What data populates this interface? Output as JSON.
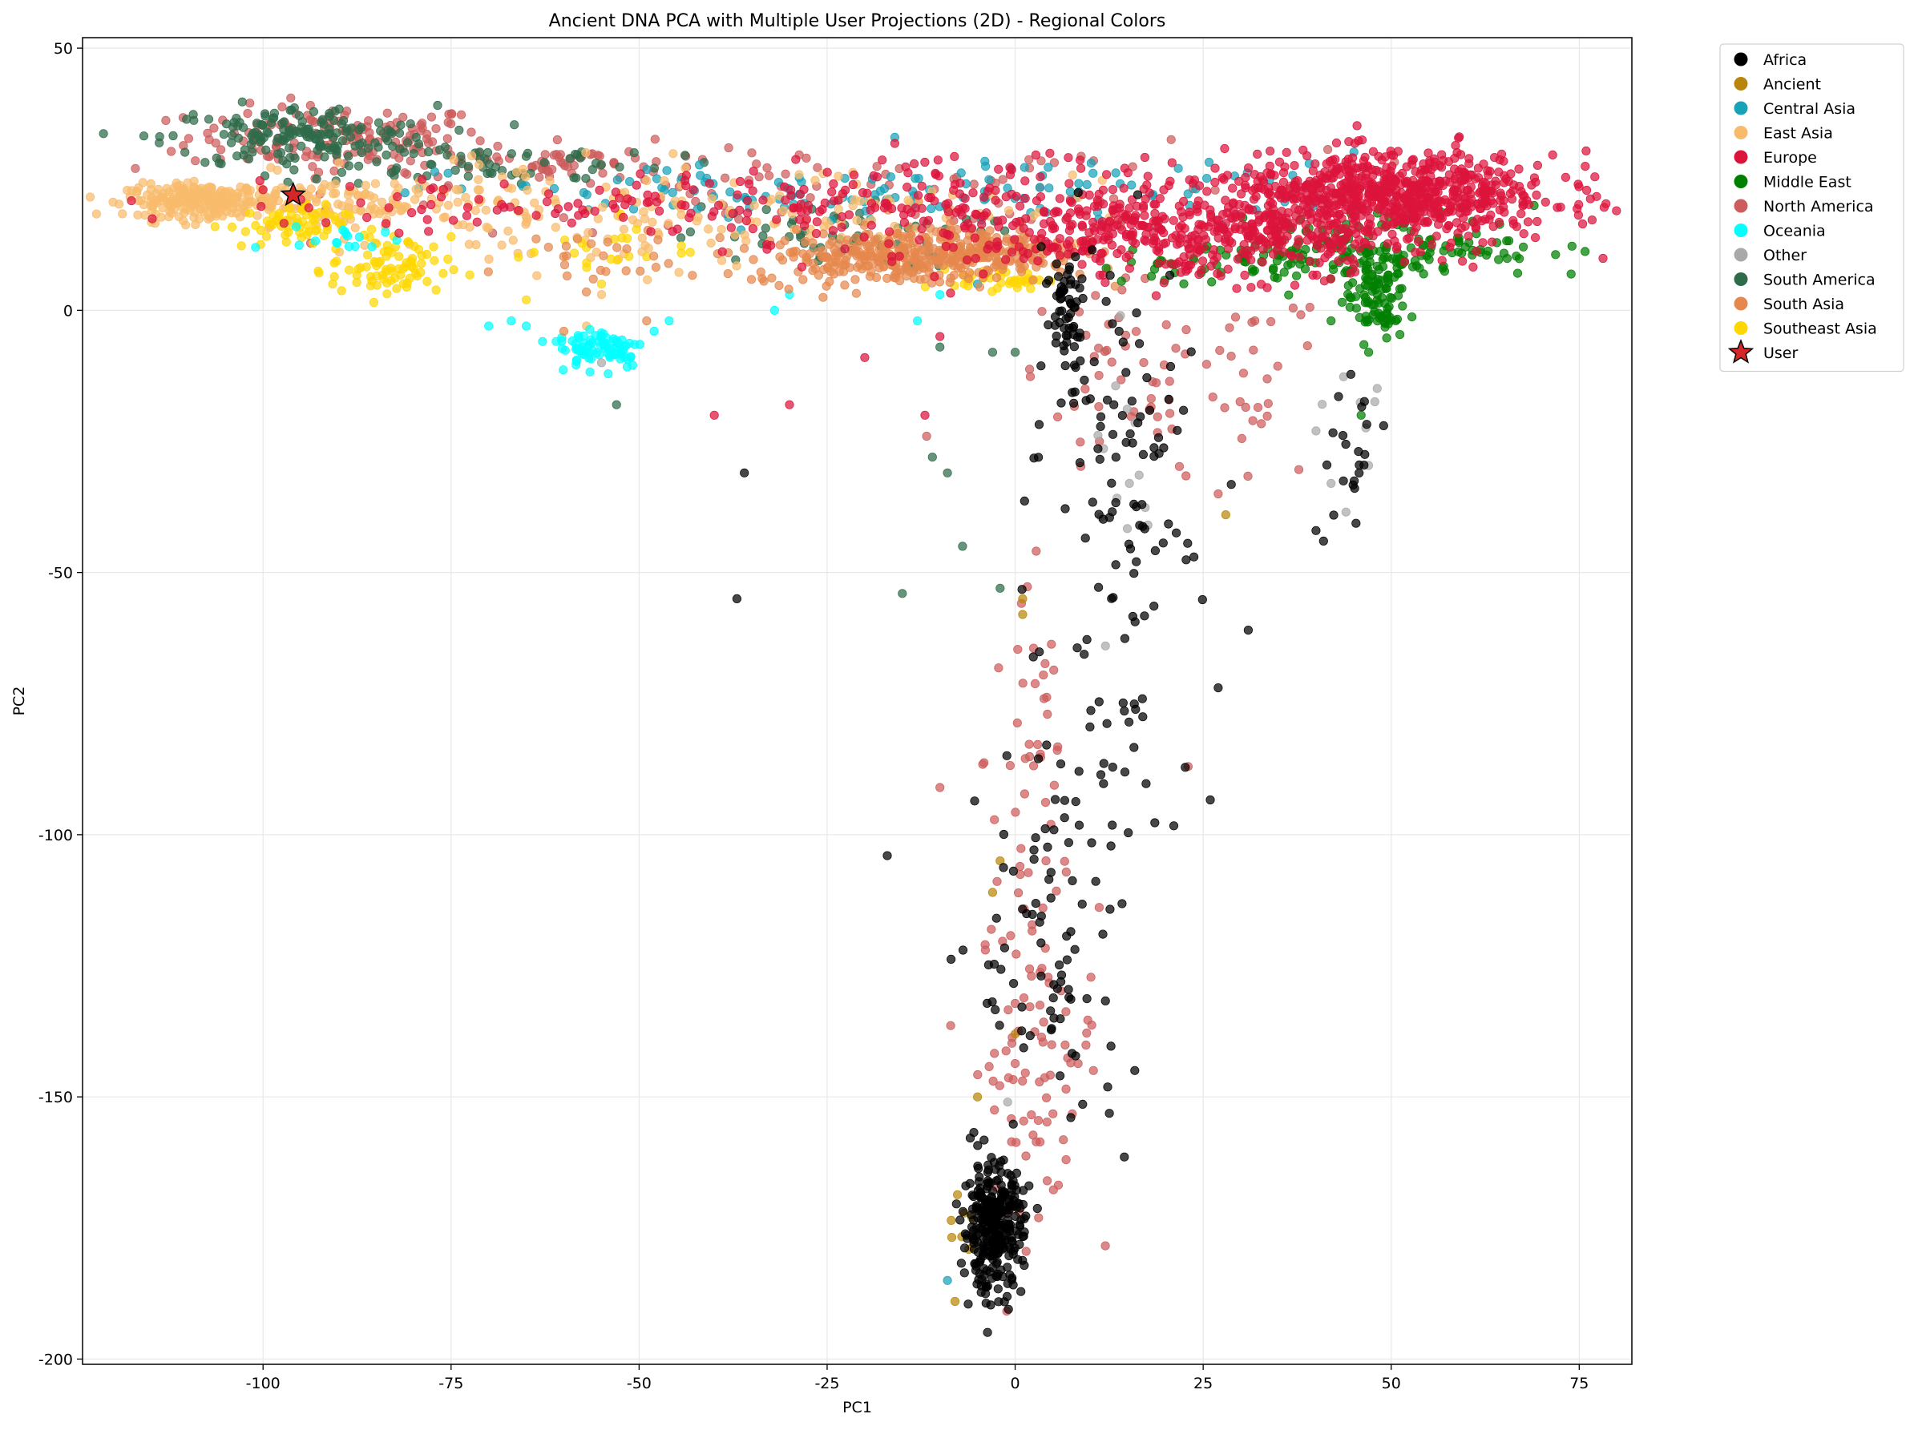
{
  "chart_data": {
    "type": "scatter",
    "title": "Ancient DNA PCA with Multiple User Projections (2D) - Regional Colors",
    "xlabel": "PC1",
    "ylabel": "PC2",
    "xlim": [
      -124,
      82
    ],
    "ylim": [
      -201,
      52
    ],
    "x_ticks": [
      -100,
      -75,
      -50,
      -25,
      0,
      25,
      50,
      75
    ],
    "y_ticks": [
      50,
      0,
      -50,
      -100,
      -150,
      -200
    ],
    "x_tick_labels": [
      "-100",
      "-75",
      "-50",
      "-25",
      "0",
      "25",
      "50",
      "75"
    ],
    "y_tick_labels": [
      "50",
      "0",
      "-50",
      "-100",
      "-150",
      "-200"
    ],
    "grid": true,
    "legend_position": "outside-right-top",
    "series": [
      {
        "name": "Africa",
        "color": "#000000",
        "clusters": [
          [
            -3,
            -175,
            2,
            6,
            320
          ],
          [
            7,
            0,
            1.5,
            6,
            60
          ],
          [
            14,
            -20,
            5,
            15,
            60
          ],
          [
            14,
            -60,
            7,
            30,
            70
          ],
          [
            5,
            -125,
            5,
            20,
            80
          ],
          [
            45,
            -28,
            2,
            6,
            20
          ]
        ],
        "points": [
          [
            -36,
            -31
          ],
          [
            -37,
            -55
          ],
          [
            -17,
            -104
          ],
          [
            31,
            -61
          ],
          [
            27,
            -72
          ],
          [
            40,
            -42
          ],
          [
            41,
            -44
          ],
          [
            49,
            -22
          ]
        ]
      },
      {
        "name": "Ancient",
        "color": "#b8860b",
        "clusters": [
          [
            -7,
            -175,
            1,
            3,
            8
          ]
        ],
        "points": [
          [
            1,
            -55
          ],
          [
            1,
            -58
          ],
          [
            -2,
            -105
          ],
          [
            -3,
            -111
          ],
          [
            0,
            -138
          ],
          [
            -8,
            -189
          ],
          [
            28,
            -39
          ],
          [
            -5,
            -150
          ]
        ]
      },
      {
        "name": "Central Asia",
        "color": "#17a2b8",
        "clusters": [
          [
            -25,
            22,
            25,
            3,
            100
          ],
          [
            20,
            24,
            15,
            3,
            30
          ]
        ],
        "points": [
          [
            -16,
            33
          ],
          [
            -9,
            -185
          ],
          [
            -5,
            5
          ]
        ]
      },
      {
        "name": "East Asia",
        "color": "#f8bb6c",
        "clusters": [
          [
            -108,
            21,
            5,
            1.5,
            240
          ],
          [
            -85,
            20,
            12,
            3,
            150
          ],
          [
            -50,
            17,
            15,
            5,
            90
          ],
          [
            -20,
            20,
            15,
            4,
            60
          ]
        ],
        "points": [
          [
            -55,
            3
          ],
          [
            -57,
            -3
          ]
        ]
      },
      {
        "name": "Europe",
        "color": "#dc143c",
        "clusters": [
          [
            50,
            22,
            11,
            4,
            700
          ],
          [
            25,
            14,
            15,
            4,
            400
          ],
          [
            5,
            20,
            25,
            5,
            200
          ],
          [
            -45,
            20,
            30,
            3,
            130
          ]
        ],
        "points": [
          [
            -30,
            -18
          ],
          [
            -40,
            -20
          ],
          [
            -20,
            -9
          ],
          [
            -10,
            -5
          ],
          [
            -12,
            -20
          ],
          [
            -8,
            24
          ],
          [
            -100,
            23
          ]
        ]
      },
      {
        "name": "Middle East",
        "color": "#008000",
        "clusters": [
          [
            48,
            2,
            2,
            4,
            90
          ],
          [
            50,
            12,
            10,
            3,
            150
          ],
          [
            30,
            9,
            10,
            2,
            60
          ]
        ],
        "points": [
          [
            42,
            -2
          ],
          [
            47,
            -8
          ],
          [
            46,
            -20
          ],
          [
            69,
            20
          ]
        ]
      },
      {
        "name": "North America",
        "color": "#cd5c5c",
        "clusters": [
          [
            -90,
            33,
            10,
            3,
            150
          ],
          [
            -60,
            28,
            15,
            2,
            80
          ],
          [
            3,
            -140,
            4,
            15,
            90
          ],
          [
            2,
            -85,
            3,
            20,
            40
          ],
          [
            20,
            -15,
            12,
            10,
            80
          ],
          [
            -3,
            23,
            40,
            4,
            80
          ]
        ],
        "points": [
          [
            -10,
            -91
          ],
          [
            23,
            -87
          ],
          [
            27,
            -35
          ]
        ]
      },
      {
        "name": "Oceania",
        "color": "#00ffff",
        "clusters": [
          [
            -55,
            -7,
            3,
            2,
            80
          ],
          [
            -88,
            13,
            4,
            1.5,
            15
          ]
        ],
        "points": [
          [
            -65,
            -3
          ],
          [
            -67,
            -2
          ],
          [
            -70,
            -3
          ],
          [
            -46,
            -2
          ],
          [
            -48,
            -4
          ],
          [
            -32,
            0
          ],
          [
            -30,
            3
          ],
          [
            -10,
            3
          ],
          [
            -13,
            -2
          ],
          [
            -101,
            12
          ]
        ]
      },
      {
        "name": "Other",
        "color": "#a9a9a9",
        "clusters": [
          [
            15,
            -30,
            4,
            10,
            12
          ],
          [
            45,
            -20,
            3,
            8,
            8
          ]
        ],
        "points": [
          [
            -55,
            -10
          ],
          [
            12,
            -64
          ],
          [
            -1,
            -151
          ],
          [
            14,
            -1
          ],
          [
            40,
            -23
          ],
          [
            42,
            -33
          ]
        ]
      },
      {
        "name": "South America",
        "color": "#2e6b4a",
        "clusters": [
          [
            -95,
            33,
            9,
            3,
            170
          ],
          [
            -70,
            28,
            12,
            2,
            60
          ],
          [
            -25,
            14,
            10,
            3,
            60
          ]
        ],
        "points": [
          [
            -53,
            -18
          ],
          [
            -11,
            -28
          ],
          [
            -9,
            -31
          ],
          [
            -7,
            -45
          ],
          [
            -15,
            -54
          ],
          [
            -2,
            -53
          ],
          [
            -3,
            -8
          ],
          [
            -10,
            -7
          ],
          [
            0,
            -8
          ]
        ]
      },
      {
        "name": "South Asia",
        "color": "#e6884e",
        "clusters": [
          [
            -15,
            10,
            10,
            2.5,
            300
          ],
          [
            -5,
            12,
            6,
            2,
            120
          ],
          [
            -58,
            10,
            6,
            3,
            25
          ]
        ],
        "points": [
          [
            -49,
            -2
          ],
          [
            -60,
            -4
          ]
        ]
      },
      {
        "name": "Southeast Asia",
        "color": "#ffd700",
        "clusters": [
          [
            -97,
            16,
            4,
            2,
            60
          ],
          [
            -83,
            8,
            4,
            3,
            80
          ],
          [
            -2,
            6,
            3,
            1,
            40
          ],
          [
            -55,
            12,
            6,
            3,
            20
          ]
        ],
        "points": [
          [
            -55,
            5
          ],
          [
            -65,
            2
          ]
        ]
      },
      {
        "name": "User",
        "color": "#d62728",
        "marker": "star",
        "clusters": [],
        "points": [
          [
            -96,
            22
          ]
        ]
      }
    ]
  }
}
